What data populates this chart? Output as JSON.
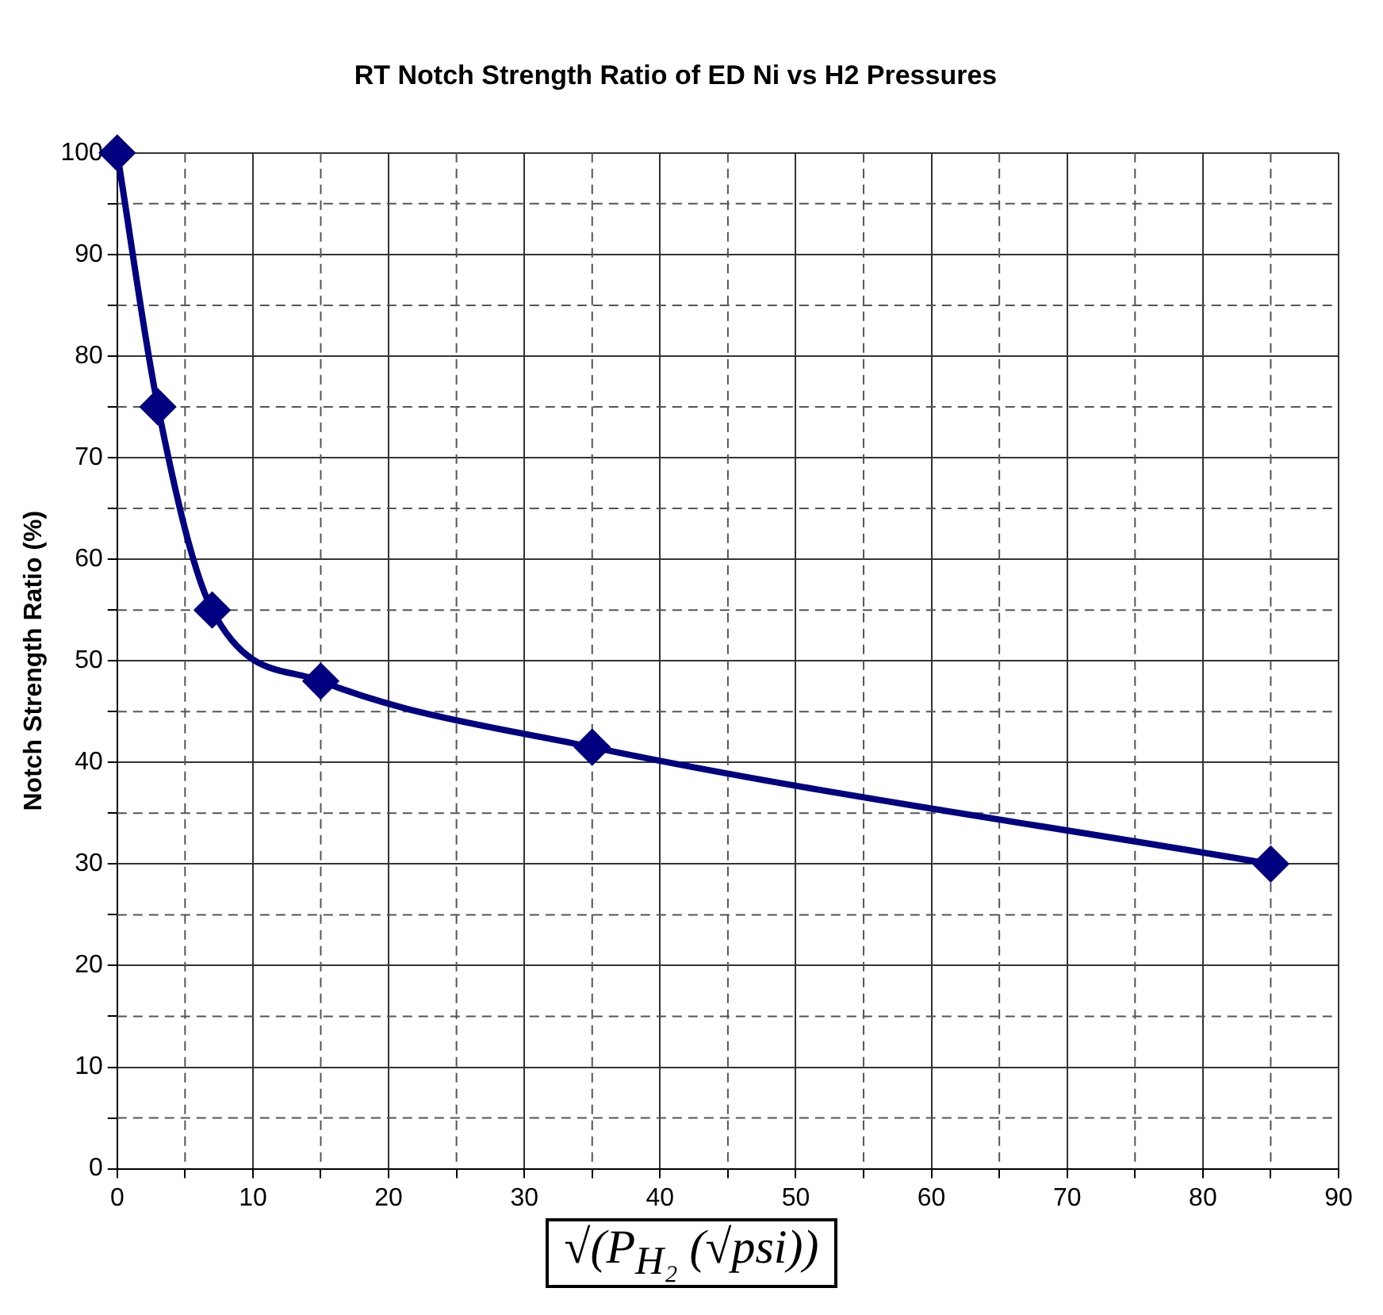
{
  "chart_data": {
    "type": "line",
    "title": "RT Notch Strength Ratio of ED Ni vs H2 Pressures",
    "xlabel": "√(P$_{H₂}$ (√psi))",
    "ylabel": "Notch Strength Ratio (%)",
    "x": [
      0,
      3,
      7,
      15,
      35,
      85
    ],
    "series": [
      {
        "color": "#000080",
        "values": [
          100,
          75,
          55,
          48,
          41.5,
          30
        ]
      }
    ],
    "xlim": [
      0,
      90
    ],
    "ylim": [
      0,
      100
    ],
    "xticks": [
      0,
      {
        "value": 5,
        "label": null
      },
      10,
      {
        "value": 15,
        "label": null
      },
      20,
      {
        "value": 25,
        "label": null
      },
      30,
      {
        "value": 35,
        "label": null
      },
      40,
      {
        "value": 45,
        "label": null
      },
      50,
      {
        "value": 55,
        "label": null
      },
      60,
      {
        "value": 65,
        "label": null
      },
      70,
      {
        "value": 75,
        "label": null
      },
      80,
      {
        "value": 85,
        "label": null
      },
      90
    ],
    "yticks": [
      0,
      {
        "value": 5,
        "label": null
      },
      10,
      {
        "value": 15,
        "label": null
      },
      20,
      {
        "value": 25,
        "label": null
      },
      30,
      {
        "value": 35,
        "label": null
      },
      40,
      {
        "value": 45,
        "label": null
      },
      50,
      {
        "value": 55,
        "label": null
      },
      60,
      {
        "value": 65,
        "label": null
      },
      70,
      {
        "value": 75,
        "label": null
      },
      80,
      {
        "value": 85,
        "label": null
      },
      90,
      {
        "value": 95,
        "label": null
      },
      100
    ],
    "grid": true,
    "legend": false,
    "marker": "diamond",
    "line_style": "solid"
  }
}
